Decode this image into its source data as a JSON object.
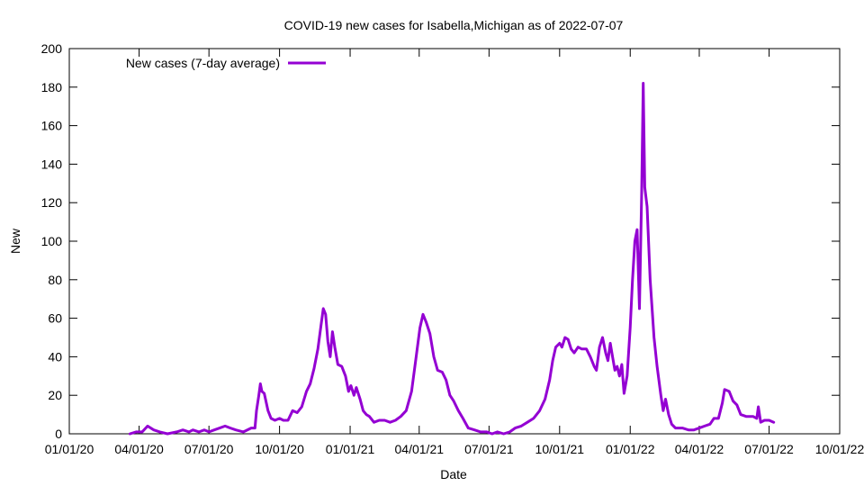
{
  "chart_data": {
    "type": "line",
    "title": "COVID-19 new cases for Isabella,Michigan as of 2022-07-07",
    "xlabel": "Date",
    "ylabel": "New",
    "xlim": [
      "2020-01-01",
      "2022-10-01"
    ],
    "ylim": [
      0,
      200
    ],
    "xticks": [
      "01/01/20",
      "04/01/20",
      "07/01/20",
      "10/01/20",
      "01/01/21",
      "04/01/21",
      "07/01/21",
      "10/01/21",
      "01/01/22",
      "04/01/22",
      "07/01/22",
      "10/01/22"
    ],
    "yticks": [
      0,
      20,
      40,
      60,
      80,
      100,
      120,
      140,
      160,
      180,
      200
    ],
    "legend_position": "top-left",
    "color": "#9400d3",
    "series": [
      {
        "name": "New cases (7-day average)",
        "points": [
          [
            "2020-03-20",
            0
          ],
          [
            "2020-03-28",
            1
          ],
          [
            "2020-04-05",
            1
          ],
          [
            "2020-04-12",
            4
          ],
          [
            "2020-04-20",
            2
          ],
          [
            "2020-04-28",
            1
          ],
          [
            "2020-05-08",
            0
          ],
          [
            "2020-05-20",
            1
          ],
          [
            "2020-05-28",
            2
          ],
          [
            "2020-06-05",
            1
          ],
          [
            "2020-06-10",
            2
          ],
          [
            "2020-06-18",
            1
          ],
          [
            "2020-06-25",
            2
          ],
          [
            "2020-07-01",
            1
          ],
          [
            "2020-07-08",
            2
          ],
          [
            "2020-07-15",
            3
          ],
          [
            "2020-07-22",
            4
          ],
          [
            "2020-07-29",
            3
          ],
          [
            "2020-08-05",
            2
          ],
          [
            "2020-08-15",
            1
          ],
          [
            "2020-08-25",
            3
          ],
          [
            "2020-08-30",
            3
          ],
          [
            "2020-09-01",
            12
          ],
          [
            "2020-09-04",
            20
          ],
          [
            "2020-09-06",
            26
          ],
          [
            "2020-09-08",
            22
          ],
          [
            "2020-09-11",
            21
          ],
          [
            "2020-09-16",
            12
          ],
          [
            "2020-09-20",
            8
          ],
          [
            "2020-09-25",
            7
          ],
          [
            "2020-10-01",
            8
          ],
          [
            "2020-10-06",
            7
          ],
          [
            "2020-10-12",
            7
          ],
          [
            "2020-10-18",
            12
          ],
          [
            "2020-10-24",
            11
          ],
          [
            "2020-10-30",
            14
          ],
          [
            "2020-11-05",
            22
          ],
          [
            "2020-11-10",
            26
          ],
          [
            "2020-11-15",
            34
          ],
          [
            "2020-11-20",
            44
          ],
          [
            "2020-11-24",
            56
          ],
          [
            "2020-11-27",
            65
          ],
          [
            "2020-11-30",
            62
          ],
          [
            "2020-12-03",
            48
          ],
          [
            "2020-12-06",
            40
          ],
          [
            "2020-12-09",
            53
          ],
          [
            "2020-12-12",
            45
          ],
          [
            "2020-12-16",
            36
          ],
          [
            "2020-12-21",
            35
          ],
          [
            "2020-12-26",
            30
          ],
          [
            "2020-12-30",
            22
          ],
          [
            "2021-01-02",
            25
          ],
          [
            "2021-01-06",
            20
          ],
          [
            "2021-01-09",
            24
          ],
          [
            "2021-01-14",
            18
          ],
          [
            "2021-01-18",
            12
          ],
          [
            "2021-01-22",
            10
          ],
          [
            "2021-01-26",
            9
          ],
          [
            "2021-02-01",
            6
          ],
          [
            "2021-02-08",
            7
          ],
          [
            "2021-02-15",
            7
          ],
          [
            "2021-02-22",
            6
          ],
          [
            "2021-03-01",
            7
          ],
          [
            "2021-03-08",
            9
          ],
          [
            "2021-03-15",
            12
          ],
          [
            "2021-03-22",
            22
          ],
          [
            "2021-03-28",
            40
          ],
          [
            "2021-04-02",
            55
          ],
          [
            "2021-04-06",
            62
          ],
          [
            "2021-04-10",
            58
          ],
          [
            "2021-04-15",
            52
          ],
          [
            "2021-04-20",
            40
          ],
          [
            "2021-04-25",
            33
          ],
          [
            "2021-05-01",
            32
          ],
          [
            "2021-05-06",
            28
          ],
          [
            "2021-05-11",
            20
          ],
          [
            "2021-05-16",
            17
          ],
          [
            "2021-05-22",
            12
          ],
          [
            "2021-05-28",
            8
          ],
          [
            "2021-06-04",
            3
          ],
          [
            "2021-06-12",
            2
          ],
          [
            "2021-06-20",
            1
          ],
          [
            "2021-06-28",
            1
          ],
          [
            "2021-07-05",
            0
          ],
          [
            "2021-07-12",
            1
          ],
          [
            "2021-07-20",
            0
          ],
          [
            "2021-07-28",
            1
          ],
          [
            "2021-08-04",
            3
          ],
          [
            "2021-08-12",
            4
          ],
          [
            "2021-08-20",
            6
          ],
          [
            "2021-08-28",
            8
          ],
          [
            "2021-09-05",
            12
          ],
          [
            "2021-09-12",
            18
          ],
          [
            "2021-09-18",
            28
          ],
          [
            "2021-09-22",
            38
          ],
          [
            "2021-09-26",
            45
          ],
          [
            "2021-10-01",
            47
          ],
          [
            "2021-10-04",
            45
          ],
          [
            "2021-10-08",
            50
          ],
          [
            "2021-10-12",
            49
          ],
          [
            "2021-10-16",
            44
          ],
          [
            "2021-10-20",
            42
          ],
          [
            "2021-10-25",
            45
          ],
          [
            "2021-10-30",
            44
          ],
          [
            "2021-11-05",
            44
          ],
          [
            "2021-11-10",
            40
          ],
          [
            "2021-11-15",
            35
          ],
          [
            "2021-11-18",
            33
          ],
          [
            "2021-11-22",
            45
          ],
          [
            "2021-11-26",
            50
          ],
          [
            "2021-11-30",
            42
          ],
          [
            "2021-12-03",
            38
          ],
          [
            "2021-12-06",
            47
          ],
          [
            "2021-12-09",
            40
          ],
          [
            "2021-12-12",
            33
          ],
          [
            "2021-12-15",
            35
          ],
          [
            "2021-12-18",
            30
          ],
          [
            "2021-12-21",
            36
          ],
          [
            "2021-12-24",
            21
          ],
          [
            "2021-12-28",
            30
          ],
          [
            "2022-01-01",
            55
          ],
          [
            "2022-01-04",
            80
          ],
          [
            "2022-01-07",
            100
          ],
          [
            "2022-01-10",
            106
          ],
          [
            "2022-01-13",
            65
          ],
          [
            "2022-01-16",
            126
          ],
          [
            "2022-01-18",
            182
          ],
          [
            "2022-01-20",
            128
          ],
          [
            "2022-01-23",
            118
          ],
          [
            "2022-01-27",
            80
          ],
          [
            "2022-02-01",
            50
          ],
          [
            "2022-02-05",
            35
          ],
          [
            "2022-02-10",
            20
          ],
          [
            "2022-02-13",
            12
          ],
          [
            "2022-02-16",
            18
          ],
          [
            "2022-02-20",
            10
          ],
          [
            "2022-02-24",
            5
          ],
          [
            "2022-03-01",
            3
          ],
          [
            "2022-03-10",
            3
          ],
          [
            "2022-03-18",
            2
          ],
          [
            "2022-03-25",
            2
          ],
          [
            "2022-04-01",
            3
          ],
          [
            "2022-04-08",
            4
          ],
          [
            "2022-04-15",
            5
          ],
          [
            "2022-04-20",
            8
          ],
          [
            "2022-04-26",
            8
          ],
          [
            "2022-05-01",
            16
          ],
          [
            "2022-05-04",
            23
          ],
          [
            "2022-05-10",
            22
          ],
          [
            "2022-05-15",
            17
          ],
          [
            "2022-05-20",
            15
          ],
          [
            "2022-05-25",
            10
          ],
          [
            "2022-06-01",
            9
          ],
          [
            "2022-06-10",
            9
          ],
          [
            "2022-06-15",
            8
          ],
          [
            "2022-06-17",
            14
          ],
          [
            "2022-06-20",
            6
          ],
          [
            "2022-06-25",
            7
          ],
          [
            "2022-07-01",
            7
          ],
          [
            "2022-07-07",
            6
          ]
        ]
      }
    ]
  }
}
